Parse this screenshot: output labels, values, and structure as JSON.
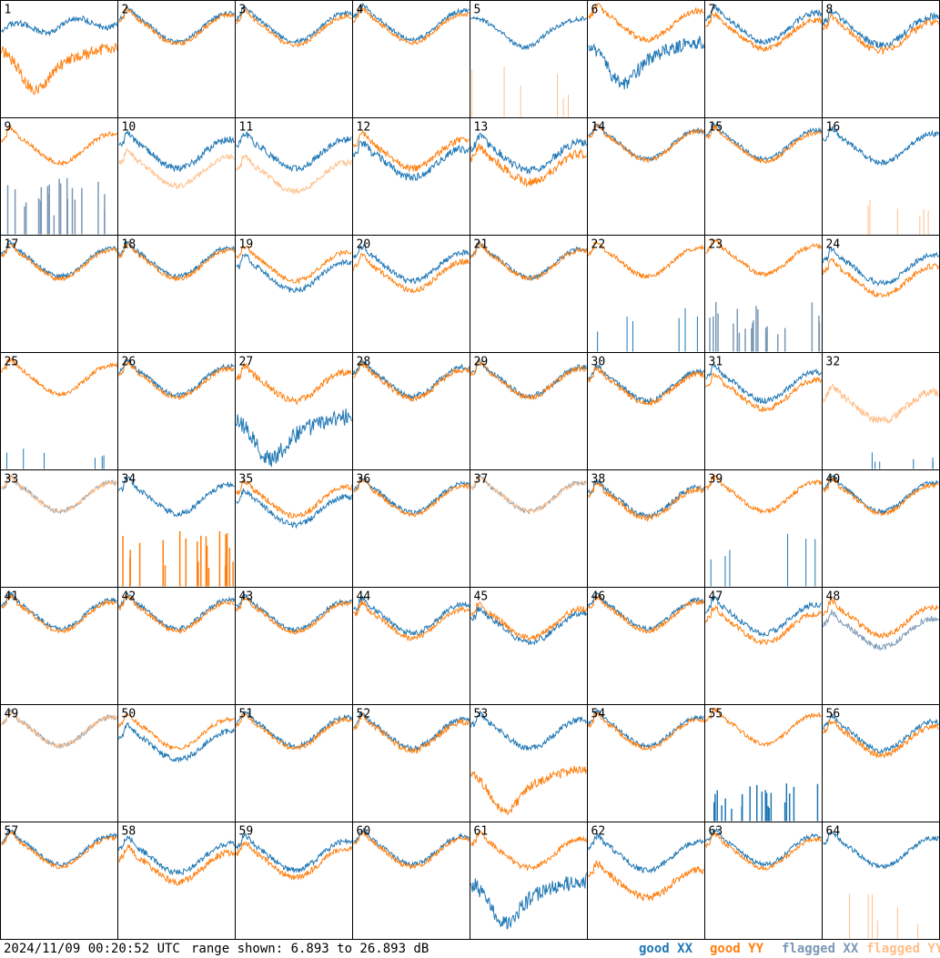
{
  "chart_data": {
    "type": "line",
    "layout": "8x8 small multiples",
    "panels": [
      {
        "label": "1",
        "xx": {
          "shape": "rise",
          "level": 0.75,
          "noise": 0.05
        },
        "yy": {
          "shape": "dip",
          "level": 0.55,
          "noise": 0.1
        }
      },
      {
        "label": "2",
        "xx": {
          "shape": "smile",
          "level": 0.78,
          "noise": 0.04
        },
        "yy": {
          "shape": "smile",
          "level": 0.76,
          "noise": 0.04
        }
      },
      {
        "label": "3",
        "xx": {
          "shape": "smile",
          "level": 0.78,
          "noise": 0.04
        },
        "yy": {
          "shape": "smile",
          "level": 0.75,
          "noise": 0.04
        }
      },
      {
        "label": "4",
        "xx": {
          "shape": "smile",
          "level": 0.8,
          "noise": 0.04
        },
        "yy": {
          "shape": "smile",
          "level": 0.77,
          "noise": 0.04
        }
      },
      {
        "label": "5",
        "xx": {
          "shape": "valley",
          "level": 0.8,
          "noise": 0.04
        },
        "flagged_yy": {
          "shape": "spikes",
          "level": 0.45,
          "noise": 0.0
        }
      },
      {
        "label": "6",
        "xx": {
          "shape": "dip",
          "level": 0.6,
          "noise": 0.12
        },
        "yy": {
          "shape": "smile",
          "level": 0.8,
          "noise": 0.05
        }
      },
      {
        "label": "7",
        "xx": {
          "shape": "smile",
          "level": 0.78,
          "noise": 0.05
        },
        "yy": {
          "shape": "smile",
          "level": 0.72,
          "noise": 0.05
        }
      },
      {
        "label": "8",
        "xx": {
          "shape": "smile",
          "level": 0.75,
          "noise": 0.06
        },
        "yy": {
          "shape": "smile",
          "level": 0.7,
          "noise": 0.06
        }
      },
      {
        "label": "9",
        "yy": {
          "shape": "smile",
          "level": 0.75,
          "noise": 0.04
        },
        "flagged_xx": {
          "shape": "bars",
          "level": 0.5,
          "noise": 0.0
        }
      },
      {
        "label": "10",
        "xx": {
          "shape": "smile",
          "level": 0.7,
          "noise": 0.06
        },
        "flagged_yy": {
          "shape": "smile",
          "level": 0.55,
          "noise": 0.05
        }
      },
      {
        "label": "11",
        "xx": {
          "shape": "smile",
          "level": 0.7,
          "noise": 0.06
        },
        "flagged_yy": {
          "shape": "smile",
          "level": 0.5,
          "noise": 0.05
        }
      },
      {
        "label": "12",
        "xx": {
          "shape": "smile",
          "level": 0.62,
          "noise": 0.07
        },
        "yy": {
          "shape": "smile",
          "level": 0.7,
          "noise": 0.06
        }
      },
      {
        "label": "13",
        "xx": {
          "shape": "smile",
          "level": 0.68,
          "noise": 0.07
        },
        "yy": {
          "shape": "smile",
          "level": 0.58,
          "noise": 0.08
        }
      },
      {
        "label": "14",
        "xx": {
          "shape": "smile",
          "level": 0.78,
          "noise": 0.04
        },
        "yy": {
          "shape": "smile",
          "level": 0.77,
          "noise": 0.04
        }
      },
      {
        "label": "15",
        "xx": {
          "shape": "smile",
          "level": 0.78,
          "noise": 0.04
        },
        "yy": {
          "shape": "smile",
          "level": 0.76,
          "noise": 0.04
        }
      },
      {
        "label": "16",
        "xx": {
          "shape": "smile",
          "level": 0.75,
          "noise": 0.05
        },
        "flagged_yy": {
          "shape": "spikes",
          "level": 0.35,
          "noise": 0.0
        }
      },
      {
        "label": "17",
        "xx": {
          "shape": "smile",
          "level": 0.78,
          "noise": 0.04
        },
        "yy": {
          "shape": "smile",
          "level": 0.76,
          "noise": 0.04
        }
      },
      {
        "label": "18",
        "xx": {
          "shape": "smile",
          "level": 0.78,
          "noise": 0.04
        },
        "yy": {
          "shape": "smile",
          "level": 0.76,
          "noise": 0.04
        }
      },
      {
        "label": "19",
        "xx": {
          "shape": "smile",
          "level": 0.66,
          "noise": 0.05
        },
        "yy": {
          "shape": "smile",
          "level": 0.74,
          "noise": 0.04
        }
      },
      {
        "label": "20",
        "xx": {
          "shape": "smile",
          "level": 0.74,
          "noise": 0.05
        },
        "yy": {
          "shape": "smile",
          "level": 0.66,
          "noise": 0.05
        }
      },
      {
        "label": "21",
        "xx": {
          "shape": "smile",
          "level": 0.77,
          "noise": 0.04
        },
        "yy": {
          "shape": "smile",
          "level": 0.76,
          "noise": 0.04
        }
      },
      {
        "label": "22",
        "yy": {
          "shape": "smile",
          "level": 0.78,
          "noise": 0.04
        },
        "xx": {
          "shape": "spikes",
          "level": 0.4,
          "noise": 0.0
        }
      },
      {
        "label": "23",
        "yy": {
          "shape": "smile",
          "level": 0.8,
          "noise": 0.04
        },
        "flagged_xx": {
          "shape": "bars",
          "level": 0.45,
          "noise": 0.0
        }
      },
      {
        "label": "24",
        "xx": {
          "shape": "smile",
          "level": 0.72,
          "noise": 0.05
        },
        "yy": {
          "shape": "smile",
          "level": 0.62,
          "noise": 0.05
        }
      },
      {
        "label": "25",
        "yy": {
          "shape": "smile",
          "level": 0.78,
          "noise": 0.04
        },
        "xx": {
          "shape": "spikes",
          "level": 0.25,
          "noise": 0.0
        }
      },
      {
        "label": "26",
        "xx": {
          "shape": "smile",
          "level": 0.77,
          "noise": 0.04
        },
        "yy": {
          "shape": "smile",
          "level": 0.75,
          "noise": 0.04
        }
      },
      {
        "label": "27",
        "xx": {
          "shape": "dip",
          "level": 0.4,
          "noise": 0.15
        },
        "yy": {
          "shape": "smile",
          "level": 0.72,
          "noise": 0.06
        }
      },
      {
        "label": "28",
        "xx": {
          "shape": "smile",
          "level": 0.76,
          "noise": 0.05
        },
        "yy": {
          "shape": "smile",
          "level": 0.74,
          "noise": 0.05
        }
      },
      {
        "label": "29",
        "xx": {
          "shape": "smile",
          "level": 0.76,
          "noise": 0.05
        },
        "yy": {
          "shape": "smile",
          "level": 0.75,
          "noise": 0.05
        }
      },
      {
        "label": "30",
        "xx": {
          "shape": "smile",
          "level": 0.72,
          "noise": 0.05
        },
        "yy": {
          "shape": "smile",
          "level": 0.7,
          "noise": 0.05
        }
      },
      {
        "label": "31",
        "xx": {
          "shape": "smile",
          "level": 0.72,
          "noise": 0.05
        },
        "yy": {
          "shape": "smile",
          "level": 0.65,
          "noise": 0.05
        }
      },
      {
        "label": "32",
        "flagged_yy": {
          "shape": "smile",
          "level": 0.55,
          "noise": 0.07
        },
        "xx": {
          "shape": "spikes",
          "level": 0.15,
          "noise": 0.0
        }
      },
      {
        "label": "33",
        "flagged_xx": {
          "shape": "smile",
          "level": 0.78,
          "noise": 0.04
        },
        "flagged_yy": {
          "shape": "smile",
          "level": 0.78,
          "noise": 0.04
        }
      },
      {
        "label": "34",
        "xx": {
          "shape": "smile",
          "level": 0.76,
          "noise": 0.05
        },
        "yy": {
          "shape": "bars",
          "level": 0.5,
          "noise": 0.0
        }
      },
      {
        "label": "35",
        "xx": {
          "shape": "smile",
          "level": 0.66,
          "noise": 0.05
        },
        "yy": {
          "shape": "smile",
          "level": 0.74,
          "noise": 0.05
        }
      },
      {
        "label": "36",
        "xx": {
          "shape": "smile",
          "level": 0.77,
          "noise": 0.04
        },
        "yy": {
          "shape": "smile",
          "level": 0.75,
          "noise": 0.04
        }
      },
      {
        "label": "37",
        "flagged_xx": {
          "shape": "smile",
          "level": 0.78,
          "noise": 0.04
        },
        "flagged_yy": {
          "shape": "smile",
          "level": 0.78,
          "noise": 0.04
        }
      },
      {
        "label": "38",
        "xx": {
          "shape": "smile",
          "level": 0.74,
          "noise": 0.05
        },
        "yy": {
          "shape": "smile",
          "level": 0.72,
          "noise": 0.05
        }
      },
      {
        "label": "39",
        "yy": {
          "shape": "smile",
          "level": 0.78,
          "noise": 0.04
        },
        "xx": {
          "shape": "spikes",
          "level": 0.55,
          "noise": 0.0
        }
      },
      {
        "label": "40",
        "xx": {
          "shape": "smile",
          "level": 0.78,
          "noise": 0.04
        },
        "yy": {
          "shape": "smile",
          "level": 0.76,
          "noise": 0.04
        }
      },
      {
        "label": "41",
        "xx": {
          "shape": "smile",
          "level": 0.78,
          "noise": 0.04
        },
        "yy": {
          "shape": "smile",
          "level": 0.76,
          "noise": 0.04
        }
      },
      {
        "label": "42",
        "xx": {
          "shape": "smile",
          "level": 0.78,
          "noise": 0.04
        },
        "yy": {
          "shape": "smile",
          "level": 0.76,
          "noise": 0.04
        }
      },
      {
        "label": "43",
        "xx": {
          "shape": "smile",
          "level": 0.77,
          "noise": 0.04
        },
        "yy": {
          "shape": "smile",
          "level": 0.75,
          "noise": 0.04
        }
      },
      {
        "label": "44",
        "xx": {
          "shape": "smile",
          "level": 0.74,
          "noise": 0.05
        },
        "yy": {
          "shape": "smile",
          "level": 0.7,
          "noise": 0.05
        }
      },
      {
        "label": "45",
        "xx": {
          "shape": "smile",
          "level": 0.66,
          "noise": 0.06
        },
        "yy": {
          "shape": "smile",
          "level": 0.7,
          "noise": 0.05
        }
      },
      {
        "label": "46",
        "xx": {
          "shape": "smile",
          "level": 0.78,
          "noise": 0.04
        },
        "yy": {
          "shape": "smile",
          "level": 0.76,
          "noise": 0.04
        }
      },
      {
        "label": "47",
        "xx": {
          "shape": "smile",
          "level": 0.74,
          "noise": 0.05
        },
        "yy": {
          "shape": "smile",
          "level": 0.66,
          "noise": 0.05
        }
      },
      {
        "label": "48",
        "flagged_xx": {
          "shape": "smile",
          "level": 0.62,
          "noise": 0.05
        },
        "yy": {
          "shape": "smile",
          "level": 0.72,
          "noise": 0.05
        }
      },
      {
        "label": "49",
        "flagged_xx": {
          "shape": "smile",
          "level": 0.78,
          "noise": 0.04
        },
        "flagged_yy": {
          "shape": "smile",
          "level": 0.78,
          "noise": 0.04
        }
      },
      {
        "label": "50",
        "xx": {
          "shape": "smile",
          "level": 0.66,
          "noise": 0.05
        },
        "yy": {
          "shape": "smile",
          "level": 0.76,
          "noise": 0.04
        }
      },
      {
        "label": "51",
        "xx": {
          "shape": "smile",
          "level": 0.78,
          "noise": 0.04
        },
        "yy": {
          "shape": "smile",
          "level": 0.76,
          "noise": 0.04
        }
      },
      {
        "label": "52",
        "xx": {
          "shape": "smile",
          "level": 0.76,
          "noise": 0.05
        },
        "yy": {
          "shape": "smile",
          "level": 0.74,
          "noise": 0.05
        }
      },
      {
        "label": "53",
        "xx": {
          "shape": "smile",
          "level": 0.76,
          "noise": 0.05
        },
        "yy": {
          "shape": "dip",
          "level": 0.4,
          "noise": 0.08
        }
      },
      {
        "label": "54",
        "xx": {
          "shape": "smile",
          "level": 0.78,
          "noise": 0.04
        },
        "yy": {
          "shape": "smile",
          "level": 0.76,
          "noise": 0.04
        }
      },
      {
        "label": "55",
        "yy": {
          "shape": "smile",
          "level": 0.8,
          "noise": 0.04
        },
        "xx": {
          "shape": "bars",
          "level": 0.35,
          "noise": 0.0
        }
      },
      {
        "label": "56",
        "xx": {
          "shape": "smile",
          "level": 0.74,
          "noise": 0.05
        },
        "yy": {
          "shape": "smile",
          "level": 0.7,
          "noise": 0.05
        }
      },
      {
        "label": "57",
        "xx": {
          "shape": "smile",
          "level": 0.77,
          "noise": 0.04
        },
        "yy": {
          "shape": "smile",
          "level": 0.75,
          "noise": 0.04
        }
      },
      {
        "label": "58",
        "xx": {
          "shape": "smile",
          "level": 0.7,
          "noise": 0.05
        },
        "yy": {
          "shape": "smile",
          "level": 0.62,
          "noise": 0.06
        }
      },
      {
        "label": "59",
        "xx": {
          "shape": "smile",
          "level": 0.72,
          "noise": 0.05
        },
        "yy": {
          "shape": "smile",
          "level": 0.66,
          "noise": 0.05
        }
      },
      {
        "label": "60",
        "xx": {
          "shape": "smile",
          "level": 0.77,
          "noise": 0.04
        },
        "yy": {
          "shape": "smile",
          "level": 0.75,
          "noise": 0.04
        }
      },
      {
        "label": "61",
        "xx": {
          "shape": "dip",
          "level": 0.45,
          "noise": 0.14
        },
        "yy": {
          "shape": "smile",
          "level": 0.74,
          "noise": 0.05
        }
      },
      {
        "label": "62",
        "xx": {
          "shape": "smile",
          "level": 0.72,
          "noise": 0.05
        },
        "yy": {
          "shape": "smile",
          "level": 0.48,
          "noise": 0.07
        }
      },
      {
        "label": "63",
        "xx": {
          "shape": "smile",
          "level": 0.77,
          "noise": 0.04
        },
        "yy": {
          "shape": "smile",
          "level": 0.74,
          "noise": 0.04
        }
      },
      {
        "label": "64",
        "xx": {
          "shape": "smile",
          "level": 0.75,
          "noise": 0.04
        },
        "flagged_yy": {
          "shape": "spikes",
          "level": 0.4,
          "noise": 0.0
        }
      }
    ],
    "range": {
      "min_db": 6.893,
      "max_db": 26.893
    },
    "grid": false
  },
  "footer": {
    "timestamp": "2024/11/09 00:20:52 UTC",
    "range_text": "range shown: 6.893 to 26.893 dB"
  },
  "legend": [
    {
      "key": "good_xx",
      "label": "good XX",
      "color": "#1f77b4"
    },
    {
      "key": "good_yy",
      "label": "good YY",
      "color": "#ff7f0e"
    },
    {
      "key": "flagged_xx",
      "label": "flagged XX",
      "color": "#7a98b6"
    },
    {
      "key": "flagged_yy",
      "label": "flagged YY",
      "color": "#ffbf8a"
    }
  ]
}
